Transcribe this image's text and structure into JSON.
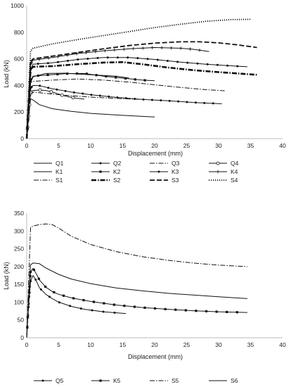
{
  "chart_data": [
    {
      "type": "line",
      "xlabel": "Displacement (mm)",
      "ylabel": "Load (kN)",
      "xlim": [
        0,
        40
      ],
      "ylim": [
        0,
        1000
      ],
      "xticks": [
        0,
        5,
        10,
        15,
        20,
        25,
        30,
        35,
        40
      ],
      "yticks": [
        0,
        200,
        400,
        600,
        800,
        1000
      ],
      "grid": false,
      "legend": "bottom",
      "series": [
        {
          "name": "Q1",
          "style": "solid",
          "marker": "none",
          "width": 1,
          "x": [
            0,
            0.3,
            0.6,
            1,
            2,
            4,
            7,
            10,
            14,
            17,
            20
          ],
          "y": [
            0,
            160,
            300,
            290,
            255,
            225,
            205,
            190,
            178,
            170,
            163
          ]
        },
        {
          "name": "Q2",
          "style": "solid",
          "marker": "dot",
          "width": 1,
          "x": [
            0,
            0.3,
            0.6,
            1,
            2,
            4,
            7,
            10,
            14,
            18,
            22,
            26,
            30.5
          ],
          "y": [
            0,
            180,
            380,
            400,
            398,
            375,
            350,
            330,
            310,
            295,
            285,
            272,
            262
          ]
        },
        {
          "name": "Q3",
          "style": "dashdot",
          "marker": "none",
          "width": 1,
          "x": [
            0,
            0.3,
            0.6,
            1,
            2,
            4,
            7,
            10,
            14,
            18
          ],
          "y": [
            0,
            160,
            330,
            350,
            345,
            335,
            322,
            312,
            302,
            295
          ]
        },
        {
          "name": "Q4",
          "style": "solid",
          "marker": "circle",
          "width": 1,
          "x": [
            0,
            0.3,
            0.6,
            1,
            2,
            3,
            4,
            5,
            6,
            7,
            8,
            9
          ],
          "y": [
            0,
            180,
            350,
            362,
            365,
            362,
            350,
            335,
            320,
            310,
            302,
            298
          ]
        },
        {
          "name": "K1",
          "style": "solid",
          "marker": "none",
          "width": 1,
          "x": [
            0,
            0.3,
            0.6,
            1,
            3,
            6,
            10,
            14,
            16
          ],
          "y": [
            0,
            200,
            420,
            465,
            490,
            492,
            480,
            470,
            455
          ]
        },
        {
          "name": "K2",
          "style": "solid",
          "marker": "square",
          "width": 1,
          "x": [
            0,
            0.3,
            0.6,
            1,
            3,
            6,
            9,
            12,
            15,
            18,
            20
          ],
          "y": [
            0,
            200,
            440,
            470,
            478,
            488,
            490,
            470,
            455,
            440,
            435
          ]
        },
        {
          "name": "K3",
          "style": "solid",
          "marker": "dot",
          "width": 1,
          "x": [
            0,
            0.3,
            0.6,
            1,
            4,
            8,
            12,
            16,
            20,
            24,
            28,
            31,
            34.5
          ],
          "y": [
            0,
            250,
            520,
            560,
            570,
            595,
            610,
            610,
            595,
            575,
            560,
            550,
            540
          ]
        },
        {
          "name": "K4",
          "style": "solid",
          "marker": "plus",
          "width": 1,
          "x": [
            0,
            0.3,
            0.6,
            1,
            4,
            8,
            12,
            16,
            20,
            24,
            26,
            28.5
          ],
          "y": [
            0,
            260,
            560,
            590,
            610,
            640,
            660,
            675,
            685,
            680,
            672,
            655
          ]
        },
        {
          "name": "S1",
          "style": "dashdot",
          "marker": "none",
          "width": 1,
          "x": [
            0,
            0.3,
            0.6,
            1,
            4,
            8,
            12,
            16,
            20,
            24,
            28,
            31
          ],
          "y": [
            0,
            190,
            420,
            430,
            440,
            448,
            440,
            425,
            405,
            385,
            368,
            360
          ]
        },
        {
          "name": "S2",
          "style": "dashdot",
          "marker": "none",
          "width": 2.6,
          "x": [
            0,
            0.3,
            0.6,
            1,
            4,
            8,
            12,
            15,
            18,
            22,
            26,
            30,
            36
          ],
          "y": [
            0,
            250,
            520,
            540,
            545,
            560,
            572,
            575,
            560,
            535,
            515,
            500,
            480
          ]
        },
        {
          "name": "S3",
          "style": "dashed",
          "marker": "none",
          "width": 1.8,
          "x": [
            0,
            0.3,
            0.6,
            1,
            4,
            8,
            12,
            16,
            20,
            24,
            27,
            30,
            33,
            36
          ],
          "y": [
            0,
            280,
            580,
            600,
            620,
            648,
            675,
            700,
            718,
            728,
            728,
            720,
            705,
            685
          ]
        },
        {
          "name": "S4",
          "style": "dotted",
          "marker": "none",
          "width": 1.8,
          "x": [
            0,
            0.3,
            0.6,
            1,
            4,
            8,
            12,
            16,
            20,
            24,
            28,
            32,
            35
          ],
          "y": [
            0,
            330,
            660,
            680,
            712,
            745,
            775,
            805,
            835,
            860,
            882,
            895,
            897
          ]
        }
      ]
    },
    {
      "type": "line",
      "xlabel": "Displacement (mm)",
      "ylabel": "Load (kN)",
      "xlim": [
        0,
        40
      ],
      "ylim": [
        0,
        350
      ],
      "xticks": [
        0,
        5,
        10,
        15,
        20,
        25,
        30,
        35,
        40
      ],
      "yticks": [
        0,
        50,
        100,
        150,
        200,
        250,
        300,
        350
      ],
      "grid": false,
      "legend": "bottom",
      "series": [
        {
          "name": "Q5",
          "style": "solid",
          "marker": "dot",
          "width": 1,
          "x": [
            0,
            0.3,
            0.6,
            1,
            1.5,
            2,
            3,
            4,
            5,
            7,
            9,
            12,
            15.5
          ],
          "y": [
            0,
            90,
            160,
            175,
            160,
            140,
            122,
            110,
            100,
            88,
            80,
            73,
            68
          ]
        },
        {
          "name": "K5",
          "style": "solid",
          "marker": "square",
          "width": 1,
          "x": [
            0,
            0.3,
            0.6,
            1,
            1.5,
            2,
            3,
            4,
            5,
            7,
            10,
            14,
            18,
            22,
            26,
            30,
            34.5
          ],
          "y": [
            0,
            100,
            185,
            195,
            180,
            162,
            142,
            130,
            122,
            112,
            102,
            92,
            85,
            80,
            76,
            73,
            71
          ]
        },
        {
          "name": "S5",
          "style": "dashdot",
          "marker": "none",
          "width": 1,
          "x": [
            0,
            0.3,
            0.6,
            1,
            2,
            3,
            4,
            5,
            7,
            10,
            14,
            18,
            22,
            26,
            30,
            34.5
          ],
          "y": [
            0,
            160,
            310,
            314,
            318,
            320,
            318,
            308,
            285,
            262,
            242,
            228,
            218,
            210,
            204,
            200
          ]
        },
        {
          "name": "S6",
          "style": "solid",
          "marker": "none",
          "width": 1,
          "x": [
            0,
            0.3,
            0.6,
            1,
            2,
            3,
            5,
            7,
            10,
            14,
            18,
            22,
            26,
            30,
            34.5
          ],
          "y": [
            0,
            110,
            205,
            210,
            208,
            196,
            178,
            165,
            152,
            140,
            132,
            125,
            120,
            115,
            110
          ]
        }
      ]
    }
  ]
}
